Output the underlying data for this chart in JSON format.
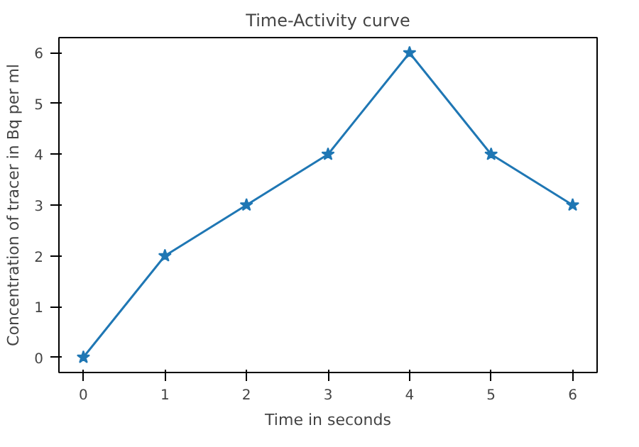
{
  "chart_data": {
    "type": "line",
    "title": "Time-Activity curve",
    "xlabel": "Time in seconds",
    "ylabel": "Concentration of tracer in Bq per ml",
    "x": [
      0,
      1,
      2,
      3,
      4,
      5,
      6
    ],
    "series": [
      {
        "color": "#1f77b4",
        "values": [
          0,
          2,
          3,
          4,
          6,
          4,
          3
        ]
      }
    ],
    "xlim": [
      -0.3,
      6.3
    ],
    "ylim": [
      -0.3,
      6.3
    ],
    "xticks": [
      0,
      1,
      2,
      3,
      4,
      5,
      6
    ],
    "yticks": [
      0,
      1,
      2,
      3,
      4,
      5,
      6
    ],
    "marker": "star",
    "line_style": "solid",
    "grid": false
  }
}
